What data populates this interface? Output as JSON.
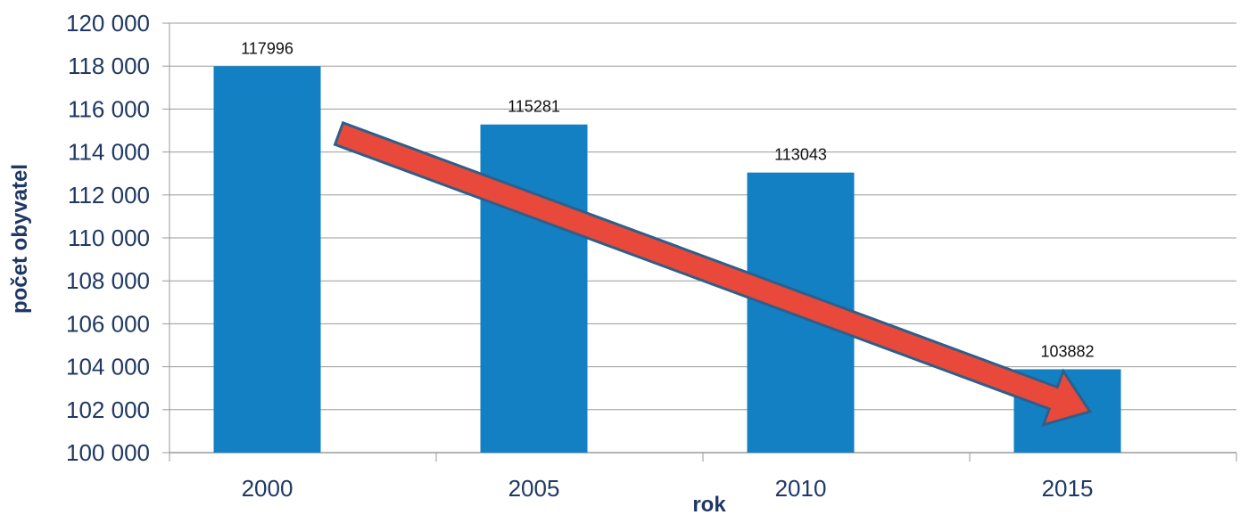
{
  "chart_data": {
    "type": "bar",
    "title": "",
    "xlabel": "rok",
    "ylabel": "počet obyvatel",
    "categories": [
      "2000",
      "2005",
      "2010",
      "2015"
    ],
    "values": [
      117996,
      115281,
      113043,
      103882
    ],
    "data_labels": [
      "117996",
      "115281",
      "113043",
      "103882"
    ],
    "ylim": [
      100000,
      120000
    ],
    "yticks": [
      100000,
      102000,
      104000,
      106000,
      108000,
      110000,
      112000,
      114000,
      116000,
      118000,
      120000
    ],
    "ytick_labels": [
      "100 000",
      "102 000",
      "104 000",
      "106 000",
      "108 000",
      "110 000",
      "112 000",
      "114 000",
      "116 000",
      "118 000",
      "120 000"
    ],
    "grid": true,
    "legend": "none",
    "bar_color": "#1380c4",
    "arrow_color": "#e8493a",
    "arrow_outline_color": "#2e5f8a",
    "annotation": "red-downward-trend-arrow"
  }
}
